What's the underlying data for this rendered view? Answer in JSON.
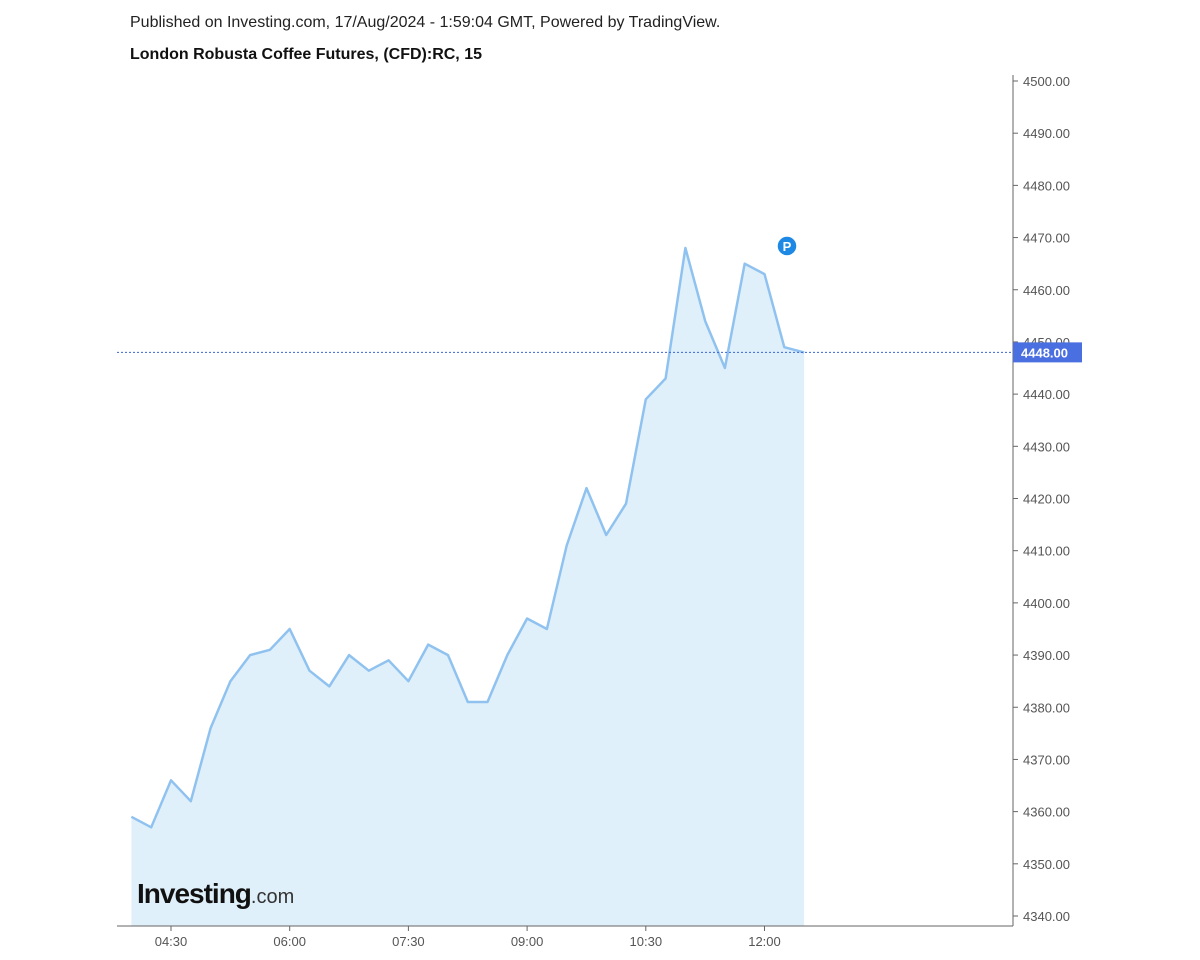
{
  "header": {
    "published": "Published on Investing.com, 17/Aug/2024 - 1:59:04 GMT, Powered by TradingView.",
    "title": "London Robusta Coffee Futures, (CFD):RC, 15"
  },
  "logo": {
    "text": "Investing",
    "suffix": ".com"
  },
  "marker": {
    "label": "P",
    "color": "#1e88e5"
  },
  "chart_data": {
    "type": "area",
    "title": "London Robusta Coffee Futures, (CFD):RC, 15",
    "x": [
      "04:00",
      "04:15",
      "04:30",
      "04:45",
      "05:00",
      "05:15",
      "05:30",
      "05:45",
      "06:00",
      "06:15",
      "06:30",
      "06:45",
      "07:00",
      "07:15",
      "07:30",
      "07:45",
      "08:00",
      "08:15",
      "08:30",
      "08:45",
      "09:00",
      "09:15",
      "09:30",
      "09:45",
      "10:00",
      "10:15",
      "10:30",
      "10:45",
      "11:00",
      "11:15",
      "11:30",
      "11:45",
      "12:00",
      "12:15",
      "12:30"
    ],
    "values": [
      4359,
      4357,
      4366,
      4362,
      4376,
      4385,
      4390,
      4391,
      4395,
      4387,
      4384,
      4390,
      4387,
      4389,
      4385,
      4392,
      4390,
      4381,
      4381,
      4390,
      4397,
      4395,
      4411,
      4422,
      4413,
      4419,
      4439,
      4443,
      4468,
      4454,
      4445,
      4465,
      4463,
      4449,
      4448
    ],
    "x_ticks": [
      "04:30",
      "06:00",
      "07:30",
      "09:00",
      "10:30",
      "12:00"
    ],
    "y_ticks": [
      "4340.00",
      "4350.00",
      "4360.00",
      "4370.00",
      "4380.00",
      "4390.00",
      "4400.00",
      "4410.00",
      "4420.00",
      "4430.00",
      "4440.00",
      "4450.00",
      "4460.00",
      "4470.00",
      "4480.00",
      "4490.00",
      "4500.00"
    ],
    "ylim": [
      4340,
      4500
    ],
    "last_price": "4448.00",
    "last_price_value": 4448,
    "grid": false,
    "colors": {
      "line": "#90c2f0",
      "fill": "#e0f0fa",
      "price_line": "#3a64d8",
      "price_label": "#4a6fe0"
    }
  }
}
